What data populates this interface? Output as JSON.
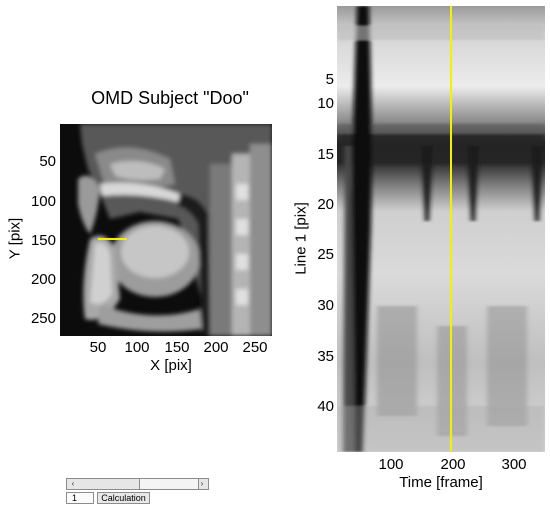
{
  "left_panel": {
    "title": "OMD Subject \"Doo\"",
    "y_label": "Y [pix]",
    "x_label": "X [pix]",
    "y_ticks": [
      "50",
      "100",
      "150",
      "200",
      "250"
    ],
    "x_ticks": [
      "50",
      "100",
      "150",
      "200",
      "250"
    ]
  },
  "right_panel": {
    "y_label": "Line 1 [pix]",
    "x_label": "Time [frame]",
    "y_ticks": [
      "5",
      "10",
      "15",
      "20",
      "25",
      "30",
      "35",
      "40"
    ],
    "x_ticks": [
      "100",
      "200",
      "300"
    ],
    "cursor_color": "#f5f000"
  },
  "controls": {
    "frame_value": "1",
    "calc_button": "Calculation",
    "left_arrow": "‹",
    "right_arrow": "›"
  }
}
